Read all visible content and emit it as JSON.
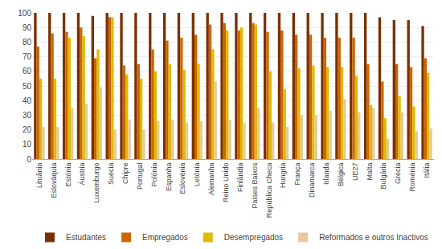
{
  "chart_data": {
    "type": "bar",
    "categories": [
      "Lituânia",
      "Eslováquia",
      "Estónia",
      "Áustria",
      "Luxemburgo",
      "Suécia",
      "Chipre",
      "Portugal",
      "Polónia",
      "Espanha",
      "Eslovénia",
      "Letónia",
      "Alemanha",
      "Reino Unido",
      "Finlândia",
      "Países Baixos",
      "República Checa",
      "Hungria",
      "França",
      "Dinamarca",
      "Irlanda",
      "Bélgica",
      "UE27",
      "Malta",
      "Bulgária",
      "Grécia",
      "Roménia",
      "Itália"
    ],
    "series": [
      {
        "name": "Estudantes",
        "color": "#7B3000",
        "values": [
          100,
          100,
          100,
          100,
          98,
          100,
          100,
          100,
          100,
          100,
          100,
          100,
          100,
          100,
          100,
          100,
          100,
          100,
          100,
          100,
          100,
          100,
          100,
          100,
          97,
          95,
          95,
          91
        ]
      },
      {
        "name": "Empregados",
        "color": "#CC6600",
        "values": [
          77,
          86,
          87,
          90,
          69,
          97,
          64,
          65,
          75,
          81,
          83,
          85,
          92,
          93,
          88,
          93,
          87,
          88,
          85,
          85,
          83,
          83,
          83,
          65,
          53,
          65,
          63,
          69
        ]
      },
      {
        "name": "Desempregados",
        "color": "#DDBB00",
        "values": [
          55,
          55,
          83,
          84,
          75,
          97,
          58,
          55,
          60,
          65,
          61,
          65,
          75,
          88,
          90,
          92,
          60,
          48,
          62,
          64,
          63,
          63,
          57,
          37,
          28,
          43,
          36,
          59
        ]
      },
      {
        "name": "Reformados e outros Inactivos",
        "color": "#E8C89A",
        "values": [
          22,
          22,
          35,
          38,
          49,
          20,
          27,
          20,
          26,
          27,
          25,
          26,
          53,
          27,
          25,
          35,
          25,
          22,
          30,
          30,
          33,
          41,
          32,
          35,
          14,
          32,
          19,
          21
        ]
      }
    ],
    "ylim": [
      0,
      100
    ],
    "yticks": [
      0,
      10,
      20,
      30,
      40,
      50,
      60,
      70,
      80,
      90,
      100
    ],
    "grid": true,
    "legend": "bottom"
  }
}
